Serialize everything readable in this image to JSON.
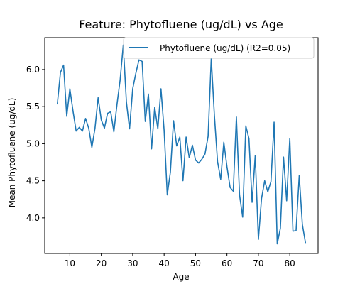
{
  "chart_data": {
    "type": "line",
    "title": "Feature: Phytofluene (ug/dL) vs Age",
    "xlabel": "Age",
    "ylabel": "Mean Phytofluene (ug/dL)",
    "xlim": [
      2,
      89
    ],
    "ylim": [
      3.52,
      6.43
    ],
    "xticks": [
      10,
      20,
      30,
      40,
      50,
      60,
      70,
      80
    ],
    "yticks": [
      4.0,
      4.5,
      5.0,
      5.5,
      6.0
    ],
    "ytick_labels": [
      "4.0",
      "4.5",
      "5.0",
      "5.5",
      "6.0"
    ],
    "grid": false,
    "legend_position": "top-right",
    "series": [
      {
        "name": "Phytofluene (ug/dL) (R2=0.05)",
        "color": "#1f77b4",
        "x": [
          6,
          7,
          8,
          9,
          10,
          11,
          12,
          13,
          14,
          15,
          16,
          17,
          18,
          19,
          20,
          21,
          22,
          23,
          24,
          25,
          26,
          27,
          28,
          29,
          30,
          31,
          32,
          33,
          34,
          35,
          36,
          37,
          38,
          39,
          40,
          41,
          42,
          43,
          44,
          45,
          46,
          47,
          48,
          49,
          50,
          51,
          52,
          53,
          54,
          55,
          56,
          57,
          58,
          59,
          60,
          61,
          62,
          63,
          64,
          65,
          66,
          67,
          68,
          69,
          70,
          71,
          72,
          73,
          74,
          75,
          76,
          77,
          78,
          79,
          80,
          81,
          82,
          83,
          84,
          85
        ],
        "y": [
          5.53,
          5.96,
          6.06,
          5.37,
          5.74,
          5.44,
          5.17,
          5.22,
          5.17,
          5.34,
          5.21,
          4.95,
          5.21,
          5.62,
          5.32,
          5.21,
          5.41,
          5.43,
          5.16,
          5.53,
          5.86,
          6.33,
          5.56,
          5.2,
          5.74,
          5.95,
          6.13,
          6.11,
          5.3,
          5.67,
          4.93,
          5.49,
          5.2,
          5.74,
          5.18,
          4.31,
          4.62,
          5.31,
          4.97,
          5.09,
          4.5,
          5.09,
          4.81,
          4.98,
          4.78,
          4.74,
          4.79,
          4.86,
          5.1,
          6.15,
          5.38,
          4.76,
          4.52,
          5.02,
          4.69,
          4.41,
          4.36,
          5.36,
          4.31,
          4.01,
          5.24,
          5.07,
          4.21,
          4.84,
          3.71,
          4.26,
          4.5,
          4.35,
          4.49,
          5.29,
          3.65,
          3.86,
          4.82,
          4.23,
          5.07,
          3.82,
          3.83,
          4.57,
          3.91,
          3.66
        ]
      }
    ]
  }
}
